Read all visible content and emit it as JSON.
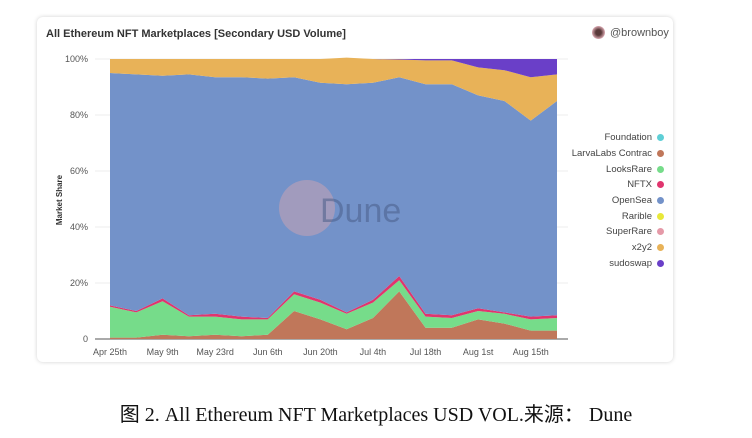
{
  "chart_data": {
    "type": "area",
    "stacked": true,
    "normalized": true,
    "title": "All Ethereum NFT Marketplaces [Secondary USD Volume]",
    "ylabel": "Market Share",
    "xlabel": "",
    "ylim": [
      0,
      100
    ],
    "yticks": [
      "0",
      "20%",
      "40%",
      "60%",
      "80%",
      "100%"
    ],
    "ytick_values": [
      0,
      20,
      40,
      60,
      80,
      100
    ],
    "xtick_labels": [
      "Apr 25th",
      "May 9th",
      "May 23rd",
      "Jun 6th",
      "Jun 20th",
      "Jul 4th",
      "Jul 18th",
      "Aug 1st",
      "Aug 15th"
    ],
    "xtick_index": [
      0,
      2,
      4,
      6,
      8,
      10,
      12,
      14,
      16
    ],
    "x": [
      "Apr 25",
      "May 2",
      "May 9",
      "May 16",
      "May 23",
      "May 30",
      "Jun 6",
      "Jun 13",
      "Jun 20",
      "Jun 27",
      "Jul 4",
      "Jul 11",
      "Jul 18",
      "Jul 25",
      "Aug 1",
      "Aug 8",
      "Aug 15",
      "Aug 22"
    ],
    "legend_position": "right",
    "grid": true,
    "series": [
      {
        "name": "Foundation",
        "color": "#5ecfd6",
        "values": [
          0,
          0,
          0,
          0,
          0,
          0,
          0,
          0,
          0,
          0,
          0,
          0,
          0,
          0,
          0,
          0,
          0,
          0
        ]
      },
      {
        "name": "LarvaLabs Contrac",
        "color": "#c0775a",
        "values": [
          0.5,
          0.5,
          1.5,
          1,
          1.5,
          1,
          1.5,
          10,
          7,
          3.5,
          7.5,
          17,
          4,
          4,
          7,
          5.5,
          3,
          3
        ]
      },
      {
        "name": "LooksRare",
        "color": "#76dc8a",
        "values": [
          11,
          9,
          12,
          7,
          6.5,
          6,
          5.5,
          6,
          6,
          5.5,
          5.5,
          4,
          4,
          3.5,
          3,
          3.5,
          4,
          4.5
        ]
      },
      {
        "name": "NFTX",
        "color": "#e0356e",
        "values": [
          0.5,
          0.5,
          1,
          0.5,
          1,
          1,
          0.5,
          1,
          1,
          0.5,
          1,
          1.5,
          1,
          1,
          1,
          0.5,
          1,
          1
        ]
      },
      {
        "name": "OpenSea",
        "color": "#7392c9",
        "values": [
          83,
          84.5,
          79.5,
          86,
          84.5,
          85.5,
          85.5,
          76.5,
          77.5,
          81.5,
          77.5,
          71,
          82,
          82.5,
          76,
          75.5,
          70,
          76.5
        ]
      },
      {
        "name": "Rarible",
        "color": "#e8e83a",
        "values": [
          0,
          0,
          0,
          0,
          0,
          0,
          0,
          0,
          0,
          0,
          0,
          0,
          0,
          0,
          0,
          0,
          0,
          0
        ]
      },
      {
        "name": "SuperRare",
        "color": "#e59aa8",
        "values": [
          0,
          0,
          0,
          0,
          0,
          0,
          0,
          0,
          0,
          0,
          0,
          0,
          0,
          0,
          0,
          0,
          0,
          0
        ]
      },
      {
        "name": "x2y2",
        "color": "#e8b258",
        "values": [
          5,
          5.5,
          6,
          5.5,
          6.5,
          6.5,
          7,
          6.5,
          8.5,
          9.5,
          8.5,
          6.3,
          8.5,
          8.5,
          10,
          11,
          15.5,
          9.5
        ]
      },
      {
        "name": "sudoswap",
        "color": "#6a3fc8",
        "values": [
          0,
          0,
          0,
          0,
          0,
          0,
          0,
          0,
          0,
          0,
          0,
          0.2,
          0.5,
          0.5,
          3,
          4,
          6.5,
          5.5
        ]
      }
    ]
  },
  "header": {
    "author": "@brownboy"
  },
  "watermark": "Dune",
  "caption": "图 2. All Ethereum NFT Marketplaces USD VOL.来源： Dune"
}
